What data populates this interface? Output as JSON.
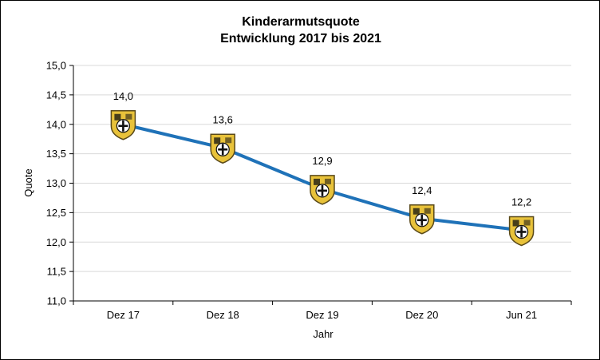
{
  "chart_data": {
    "type": "line",
    "title": "Kinderarmutsquote",
    "subtitle": "Entwicklung 2017 bis 2021",
    "xlabel": "Jahr",
    "ylabel": "Quote",
    "categories": [
      "Dez 17",
      "Dez 18",
      "Dez 19",
      "Dez 20",
      "Jun 21"
    ],
    "values": [
      14.0,
      13.6,
      12.9,
      12.4,
      12.2
    ],
    "data_labels": [
      "14,0",
      "13,6",
      "12,9",
      "12,4",
      "12,2"
    ],
    "ylim": [
      11.0,
      15.0
    ],
    "ytick_values": [
      11.0,
      11.5,
      12.0,
      12.5,
      13.0,
      13.5,
      14.0,
      14.5,
      15.0
    ],
    "ytick_labels": [
      "11,0",
      "11,5",
      "12,0",
      "12,5",
      "13,0",
      "13,5",
      "14,0",
      "14,5",
      "15,0"
    ],
    "grid": true,
    "legend": "none",
    "line_color": "#1f72b8",
    "marker_icon": "coat-of-arms-icon",
    "marker_colors": {
      "shield": "#e8c23a",
      "outline": "#5a4a1a",
      "cross": "#111111"
    }
  }
}
